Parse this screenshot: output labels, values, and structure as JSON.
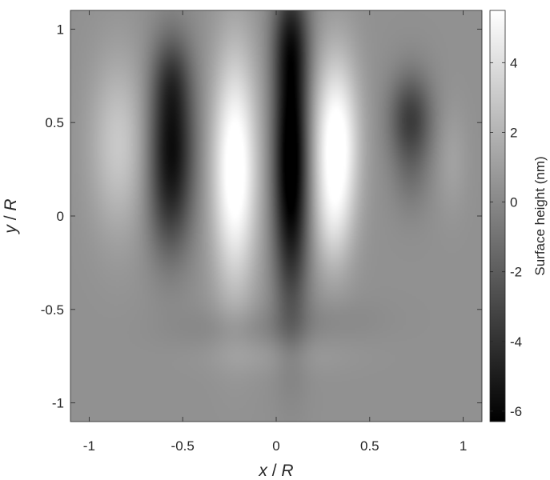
{
  "chart_data": {
    "type": "heatmap",
    "title": "",
    "xlabel": {
      "var": "x",
      "sep": " / ",
      "unit": "R"
    },
    "ylabel": {
      "var": "y",
      "sep": " / ",
      "unit": "R"
    },
    "xlim": [
      -1.1,
      1.1
    ],
    "ylim": [
      -1.1,
      1.1
    ],
    "x_ticks": [
      -1,
      -0.5,
      0,
      0.5,
      1
    ],
    "x_tick_labels": [
      "-1",
      "-0.5",
      "0",
      "0.5",
      "1"
    ],
    "y_ticks": [
      -1,
      -0.5,
      0,
      0.5,
      1
    ],
    "y_tick_labels": [
      "-1",
      "-0.5",
      "0",
      "0.5",
      "1"
    ],
    "grid": false,
    "colormap": "gray",
    "colorbar": {
      "label": "Surface height (nm)",
      "clim": [
        -6.3,
        5.5
      ],
      "ticks": [
        -6,
        -4,
        -2,
        0,
        2,
        4
      ],
      "tick_labels": [
        "-6",
        "-4",
        "-2",
        "0",
        "2",
        "4"
      ],
      "placement": "right"
    },
    "background_value": 0.4,
    "features": [
      {
        "x": -0.84,
        "y": 0.38,
        "sx": 0.11,
        "sy": 0.33,
        "z": 2.6
      },
      {
        "x": -0.56,
        "y": 0.38,
        "sx": 0.085,
        "sy": 0.33,
        "z": -6.0
      },
      {
        "x": -0.56,
        "y": 0.75,
        "sx": 0.07,
        "sy": 0.15,
        "z": -1.5
      },
      {
        "x": -0.58,
        "y": 0.0,
        "sx": 0.08,
        "sy": 0.2,
        "z": -1.0
      },
      {
        "x": -0.22,
        "y": 0.25,
        "sx": 0.085,
        "sy": 0.44,
        "z": 6.0
      },
      {
        "x": 0.08,
        "y": 0.3,
        "sx": 0.065,
        "sy": 0.52,
        "z": -7.8
      },
      {
        "x": 0.08,
        "y": 0.95,
        "sx": 0.07,
        "sy": 0.2,
        "z": -2.5
      },
      {
        "x": 0.32,
        "y": 0.38,
        "sx": 0.085,
        "sy": 0.33,
        "z": 6.0
      },
      {
        "x": 0.3,
        "y": -0.05,
        "sx": 0.07,
        "sy": 0.2,
        "z": 1.5
      },
      {
        "x": 0.72,
        "y": 0.52,
        "sx": 0.08,
        "sy": 0.17,
        "z": -3.8
      },
      {
        "x": 0.72,
        "y": 0.2,
        "sx": 0.07,
        "sy": 0.15,
        "z": -1.0
      },
      {
        "x": 0.94,
        "y": 0.3,
        "sx": 0.06,
        "sy": 0.2,
        "z": 0.8
      },
      {
        "x": -0.2,
        "y": -0.6,
        "sx": 0.25,
        "sy": 0.08,
        "z": -0.6
      },
      {
        "x": 0.3,
        "y": -0.55,
        "sx": 0.2,
        "sy": 0.08,
        "z": -0.4
      },
      {
        "x": 0.0,
        "y": -0.75,
        "sx": 0.28,
        "sy": 0.07,
        "z": 0.5
      }
    ]
  }
}
